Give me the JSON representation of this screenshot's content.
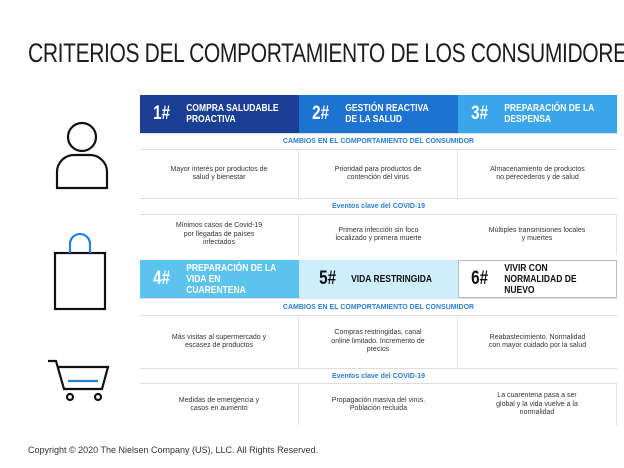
{
  "title": "CRITERIOS DEL COMPORTAMIENTO DE LOS CONSUMIDORES",
  "blocks": [
    {
      "headers": [
        {
          "number": "1#",
          "label": "COMPRA SALUDABLE PROACTIVA"
        },
        {
          "number": "2#",
          "label": "GESTIÓN REACTIVA DE LA SALUD"
        },
        {
          "number": "3#",
          "label": "PREPARACIÓN DE LA DESPENSA"
        }
      ],
      "changes_title": "CAMBIOS EN EL COMPORTAMIENTO DEL CONSUMIDOR",
      "changes": [
        "Mayor interés por productos de salud y bienestar",
        "Prioridad para productos de contención del virus",
        "Almacenamiento de productos no perecederos y de salud"
      ],
      "events_title": "Eventos clave del COVID-19",
      "events": [
        "Mínimos casos de Covid-19 por llegadas de países infectados",
        "Primera infección sin foco localizado y primera muerte",
        "Múltiples transmisiones locales y muertes"
      ]
    },
    {
      "headers": [
        {
          "number": "4#",
          "label": "PREPARACIÓN DE LA VIDA EN CUARENTENA"
        },
        {
          "number": "5#",
          "label": "VIDA RESTRINGIDA"
        },
        {
          "number": "6#",
          "label": "VIVIR CON NORMALIDAD DE NUEVO"
        }
      ],
      "changes_title": "CAMBIOS EN EL COMPORTAMIENTO DEL CONSUMIDOR",
      "changes": [
        "Más visitas al supermercado y escasez de productos",
        "Compras restringidas, canal online limitado. Incremento de precios",
        "Reabastecimiento. Normalidad con mayor cuidado por la salud"
      ],
      "events_title": "Eventos clave del COVID-19",
      "events": [
        "Medidas de emergencia y casos en aumento",
        "Propagación masiva del virus. Población recluida",
        "La cuarentena pasa a ser global y la vida vuelve a la normalidad"
      ]
    }
  ],
  "footer": "Copyright © 2020 The Nielsen Company (US), LLC. All Rights Reserved."
}
